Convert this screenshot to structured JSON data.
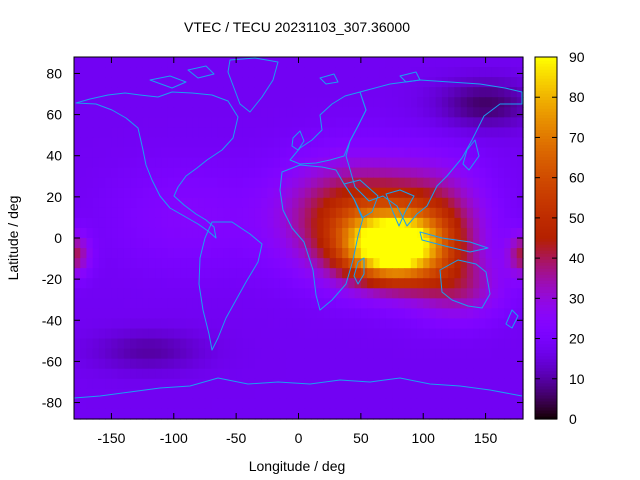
{
  "chart_data": {
    "type": "heatmap",
    "title": "VTEC / TECU 20231103_307.36000",
    "xlabel": "Longitude / deg",
    "ylabel": "Latitude / deg",
    "xlim": [
      -180,
      180
    ],
    "ylim": [
      -88,
      88
    ],
    "x_ticks": [
      "-150",
      "-100",
      "-50",
      "0",
      "50",
      "100",
      "150"
    ],
    "y_ticks": [
      "80",
      "60",
      "40",
      "20",
      "0",
      "-20",
      "-40",
      "-60",
      "-80"
    ],
    "colorbar": {
      "range": [
        0,
        90
      ],
      "ticks": [
        "0",
        "10",
        "20",
        "30",
        "40",
        "50",
        "60",
        "70",
        "80",
        "90"
      ]
    },
    "grid": false,
    "overlay": "coastlines",
    "field_model": {
      "background": 18,
      "blobs": [
        {
          "lon": 75,
          "lat": -5,
          "amp": 70,
          "sx": 38,
          "sy": 16
        },
        {
          "lon": 45,
          "lat": 10,
          "amp": 32,
          "sx": 55,
          "sy": 26
        },
        {
          "lon": 110,
          "lat": 5,
          "amp": 22,
          "sx": 40,
          "sy": 28
        },
        {
          "lon": 130,
          "lat": -25,
          "amp": 14,
          "sx": 35,
          "sy": 15
        },
        {
          "lon": -180,
          "lat": -8,
          "amp": 22,
          "sx": 12,
          "sy": 10
        },
        {
          "lon": 180,
          "lat": -8,
          "amp": 22,
          "sx": 12,
          "sy": 10
        },
        {
          "lon": 150,
          "lat": 65,
          "amp": -12,
          "sx": 40,
          "sy": 12
        },
        {
          "lon": -120,
          "lat": -55,
          "amp": -8,
          "sx": 45,
          "sy": 10
        },
        {
          "lon": -90,
          "lat": 10,
          "amp": 6,
          "sx": 60,
          "sy": 25
        }
      ]
    }
  }
}
